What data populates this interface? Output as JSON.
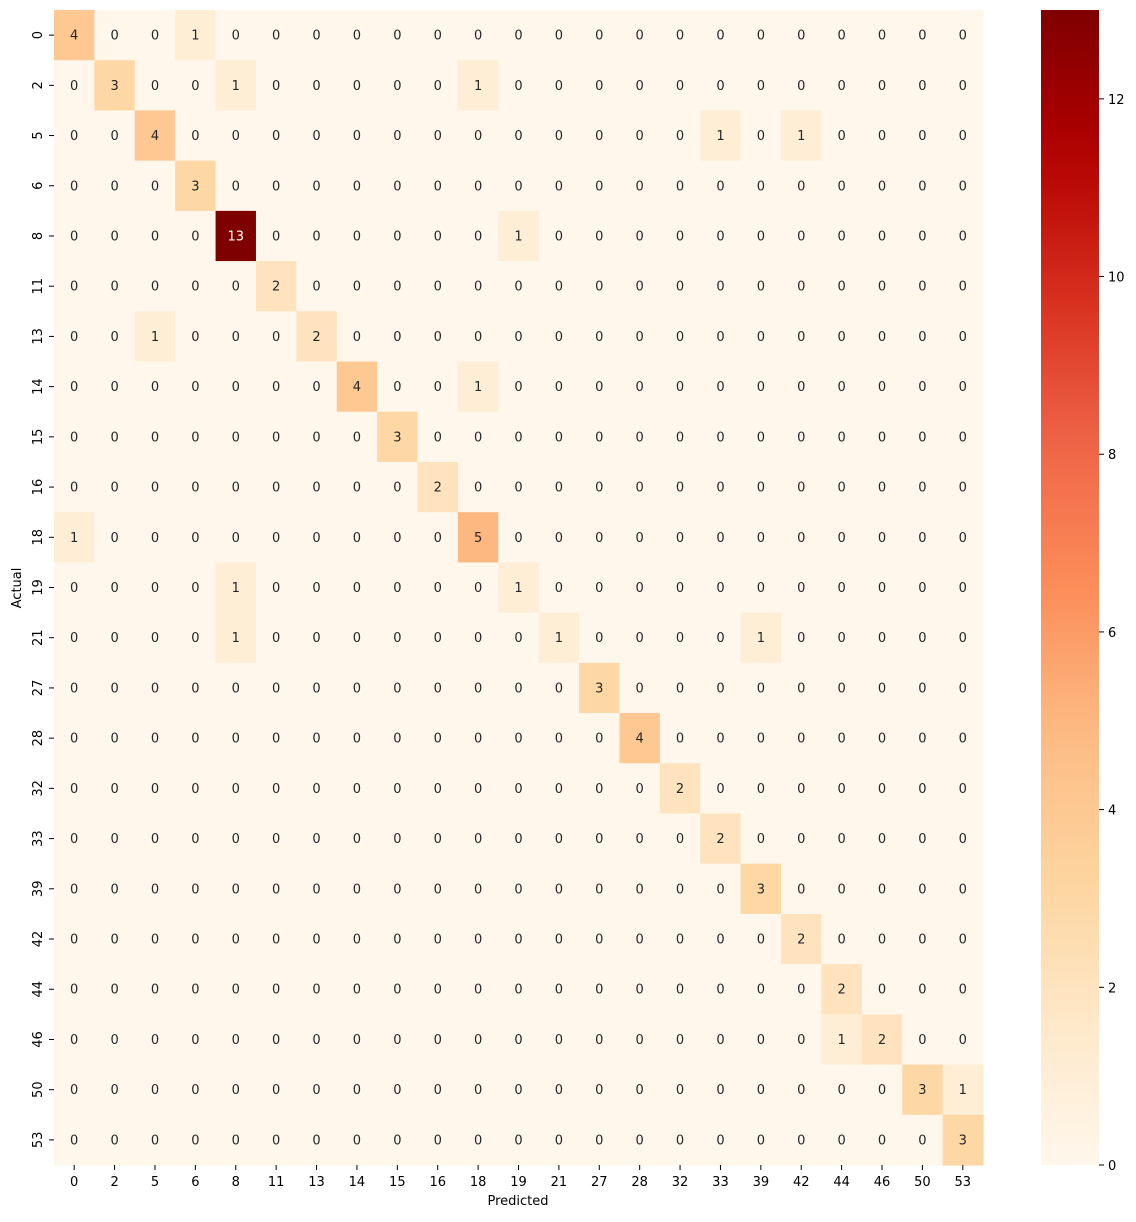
{
  "chart_data": {
    "type": "heatmap",
    "title": "",
    "xlabel": "Predicted",
    "ylabel": "Actual",
    "x_categories": [
      "0",
      "2",
      "5",
      "6",
      "8",
      "11",
      "13",
      "14",
      "15",
      "16",
      "18",
      "19",
      "21",
      "27",
      "28",
      "32",
      "33",
      "39",
      "42",
      "44",
      "46",
      "50",
      "53"
    ],
    "y_categories": [
      "0",
      "2",
      "5",
      "6",
      "8",
      "11",
      "13",
      "14",
      "15",
      "16",
      "18",
      "19",
      "21",
      "27",
      "28",
      "32",
      "33",
      "39",
      "42",
      "44",
      "46",
      "50",
      "53"
    ],
    "matrix": [
      [
        4,
        0,
        0,
        1,
        0,
        0,
        0,
        0,
        0,
        0,
        0,
        0,
        0,
        0,
        0,
        0,
        0,
        0,
        0,
        0,
        0,
        0,
        0
      ],
      [
        0,
        3,
        0,
        0,
        1,
        0,
        0,
        0,
        0,
        0,
        1,
        0,
        0,
        0,
        0,
        0,
        0,
        0,
        0,
        0,
        0,
        0,
        0
      ],
      [
        0,
        0,
        4,
        0,
        0,
        0,
        0,
        0,
        0,
        0,
        0,
        0,
        0,
        0,
        0,
        0,
        1,
        0,
        1,
        0,
        0,
        0,
        0
      ],
      [
        0,
        0,
        0,
        3,
        0,
        0,
        0,
        0,
        0,
        0,
        0,
        0,
        0,
        0,
        0,
        0,
        0,
        0,
        0,
        0,
        0,
        0,
        0
      ],
      [
        0,
        0,
        0,
        0,
        13,
        0,
        0,
        0,
        0,
        0,
        0,
        1,
        0,
        0,
        0,
        0,
        0,
        0,
        0,
        0,
        0,
        0,
        0
      ],
      [
        0,
        0,
        0,
        0,
        0,
        2,
        0,
        0,
        0,
        0,
        0,
        0,
        0,
        0,
        0,
        0,
        0,
        0,
        0,
        0,
        0,
        0,
        0
      ],
      [
        0,
        0,
        1,
        0,
        0,
        0,
        2,
        0,
        0,
        0,
        0,
        0,
        0,
        0,
        0,
        0,
        0,
        0,
        0,
        0,
        0,
        0,
        0
      ],
      [
        0,
        0,
        0,
        0,
        0,
        0,
        0,
        4,
        0,
        0,
        1,
        0,
        0,
        0,
        0,
        0,
        0,
        0,
        0,
        0,
        0,
        0,
        0
      ],
      [
        0,
        0,
        0,
        0,
        0,
        0,
        0,
        0,
        3,
        0,
        0,
        0,
        0,
        0,
        0,
        0,
        0,
        0,
        0,
        0,
        0,
        0,
        0
      ],
      [
        0,
        0,
        0,
        0,
        0,
        0,
        0,
        0,
        0,
        2,
        0,
        0,
        0,
        0,
        0,
        0,
        0,
        0,
        0,
        0,
        0,
        0,
        0
      ],
      [
        1,
        0,
        0,
        0,
        0,
        0,
        0,
        0,
        0,
        0,
        5,
        0,
        0,
        0,
        0,
        0,
        0,
        0,
        0,
        0,
        0,
        0,
        0
      ],
      [
        0,
        0,
        0,
        0,
        1,
        0,
        0,
        0,
        0,
        0,
        0,
        1,
        0,
        0,
        0,
        0,
        0,
        0,
        0,
        0,
        0,
        0,
        0
      ],
      [
        0,
        0,
        0,
        0,
        1,
        0,
        0,
        0,
        0,
        0,
        0,
        0,
        1,
        0,
        0,
        0,
        0,
        1,
        0,
        0,
        0,
        0,
        0
      ],
      [
        0,
        0,
        0,
        0,
        0,
        0,
        0,
        0,
        0,
        0,
        0,
        0,
        0,
        3,
        0,
        0,
        0,
        0,
        0,
        0,
        0,
        0,
        0
      ],
      [
        0,
        0,
        0,
        0,
        0,
        0,
        0,
        0,
        0,
        0,
        0,
        0,
        0,
        0,
        4,
        0,
        0,
        0,
        0,
        0,
        0,
        0,
        0
      ],
      [
        0,
        0,
        0,
        0,
        0,
        0,
        0,
        0,
        0,
        0,
        0,
        0,
        0,
        0,
        0,
        2,
        0,
        0,
        0,
        0,
        0,
        0,
        0
      ],
      [
        0,
        0,
        0,
        0,
        0,
        0,
        0,
        0,
        0,
        0,
        0,
        0,
        0,
        0,
        0,
        0,
        2,
        0,
        0,
        0,
        0,
        0,
        0
      ],
      [
        0,
        0,
        0,
        0,
        0,
        0,
        0,
        0,
        0,
        0,
        0,
        0,
        0,
        0,
        0,
        0,
        0,
        3,
        0,
        0,
        0,
        0,
        0
      ],
      [
        0,
        0,
        0,
        0,
        0,
        0,
        0,
        0,
        0,
        0,
        0,
        0,
        0,
        0,
        0,
        0,
        0,
        0,
        2,
        0,
        0,
        0,
        0
      ],
      [
        0,
        0,
        0,
        0,
        0,
        0,
        0,
        0,
        0,
        0,
        0,
        0,
        0,
        0,
        0,
        0,
        0,
        0,
        0,
        2,
        0,
        0,
        0
      ],
      [
        0,
        0,
        0,
        0,
        0,
        0,
        0,
        0,
        0,
        0,
        0,
        0,
        0,
        0,
        0,
        0,
        0,
        0,
        0,
        1,
        2,
        0,
        0
      ],
      [
        0,
        0,
        0,
        0,
        0,
        0,
        0,
        0,
        0,
        0,
        0,
        0,
        0,
        0,
        0,
        0,
        0,
        0,
        0,
        0,
        0,
        3,
        1
      ],
      [
        0,
        0,
        0,
        0,
        0,
        0,
        0,
        0,
        0,
        0,
        0,
        0,
        0,
        0,
        0,
        0,
        0,
        0,
        0,
        0,
        0,
        0,
        3
      ]
    ],
    "value_range": [
      0,
      13
    ],
    "colormap": "OrRd",
    "colorbar": {
      "ticks": [
        0,
        2,
        4,
        6,
        8,
        10,
        12
      ]
    },
    "grid": false,
    "legend": "colorbar-right"
  }
}
